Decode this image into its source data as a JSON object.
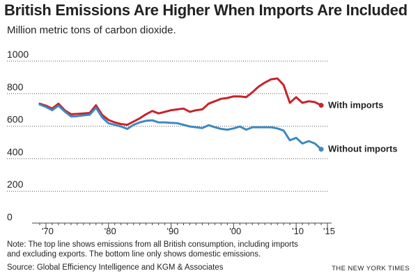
{
  "header": {
    "title": "British Emissions Are Higher When Imports Are Included",
    "subtitle": "Million metric tons of carbon dioxide."
  },
  "footer": {
    "note": "Note: The top line shows emissions from all British consumption, including imports and excluding exports. The bottom line only shows domestic emissions.",
    "source": "Source: Global Efficiency Intelligence and KGM & Associates",
    "credit": "THE NEW YORK TIMES"
  },
  "chart_data": {
    "type": "line",
    "title": "",
    "xlabel": "",
    "ylabel": "",
    "ylim": [
      0,
      1000
    ],
    "xlim": [
      1968,
      2015
    ],
    "yticks": [
      0,
      200,
      400,
      600,
      800,
      1000
    ],
    "ytick_labels": [
      "0",
      "200",
      "400",
      "600",
      "800",
      "1000"
    ],
    "xticks": [
      1970,
      1980,
      1990,
      2000,
      2010,
      2015
    ],
    "xtick_labels": [
      "'70",
      "'80",
      "'90",
      "'00",
      "'10",
      "'15"
    ],
    "grid": true,
    "legend": "direct labels at right end of lines",
    "series": [
      {
        "name": "With imports",
        "color": "#c7232a",
        "x": [
          1969,
          1970,
          1971,
          1972,
          1973,
          1974,
          1975,
          1976,
          1977,
          1978,
          1979,
          1980,
          1981,
          1982,
          1983,
          1984,
          1985,
          1986,
          1987,
          1988,
          1989,
          1990,
          1991,
          1992,
          1993,
          1994,
          1995,
          1996,
          1997,
          1998,
          1999,
          2000,
          2001,
          2002,
          2003,
          2004,
          2005,
          2006,
          2007,
          2008,
          2009,
          2010,
          2011,
          2012,
          2013,
          2014
        ],
        "values": [
          700,
          688,
          670,
          700,
          660,
          635,
          637,
          640,
          643,
          690,
          630,
          600,
          585,
          575,
          570,
          590,
          610,
          635,
          655,
          640,
          650,
          660,
          665,
          670,
          650,
          660,
          665,
          700,
          715,
          730,
          735,
          745,
          745,
          740,
          770,
          805,
          830,
          850,
          855,
          815,
          705,
          740,
          705,
          715,
          710,
          690
        ]
      },
      {
        "name": "Without imports",
        "color": "#3d88c3",
        "x": [
          1969,
          1970,
          1971,
          1972,
          1973,
          1974,
          1975,
          1976,
          1977,
          1978,
          1979,
          1980,
          1981,
          1982,
          1983,
          1984,
          1985,
          1986,
          1987,
          1988,
          1989,
          1990,
          1991,
          1992,
          1993,
          1994,
          1995,
          1996,
          1997,
          1998,
          1999,
          2000,
          2001,
          2002,
          2003,
          2004,
          2005,
          2006,
          2007,
          2008,
          2009,
          2010,
          2011,
          2012,
          2013,
          2014
        ],
        "values": [
          695,
          680,
          660,
          688,
          652,
          622,
          623,
          628,
          632,
          675,
          615,
          580,
          570,
          560,
          545,
          570,
          585,
          595,
          598,
          585,
          585,
          582,
          580,
          570,
          560,
          555,
          550,
          568,
          555,
          545,
          540,
          548,
          560,
          540,
          555,
          555,
          555,
          555,
          548,
          535,
          475,
          490,
          455,
          470,
          455,
          420
        ]
      }
    ]
  }
}
